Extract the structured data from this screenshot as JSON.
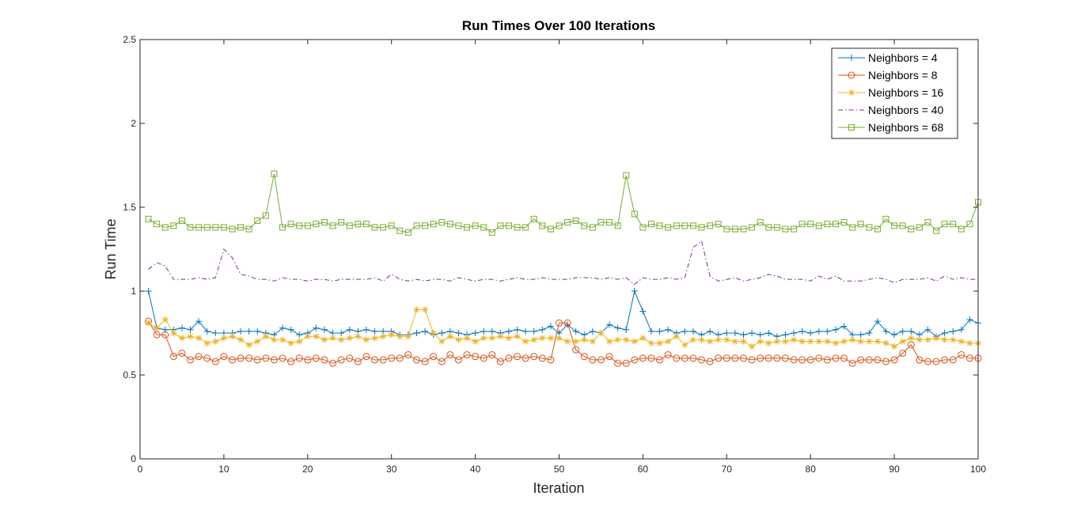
{
  "chart_data": {
    "type": "line",
    "title": "Run Times Over 100 Iterations",
    "xlabel": "Iteration",
    "ylabel": "Run Time",
    "xlim": [
      0,
      100
    ],
    "ylim": [
      0,
      2.5
    ],
    "xticks": [
      0,
      10,
      20,
      30,
      40,
      50,
      60,
      70,
      80,
      90,
      100
    ],
    "yticks": [
      0,
      0.5,
      1,
      1.5,
      2,
      2.5
    ],
    "ytick_labels": [
      "0",
      "0.5",
      "1",
      "1.5",
      "2",
      "2.5"
    ],
    "grid": false,
    "legend_position": "top-right",
    "series": [
      {
        "name": "Neighbors = 4",
        "color": "#0072BD",
        "marker": "plus",
        "line_style": "solid",
        "values": [
          1.0,
          0.78,
          0.77,
          0.77,
          0.78,
          0.77,
          0.82,
          0.76,
          0.75,
          0.75,
          0.75,
          0.76,
          0.76,
          0.76,
          0.75,
          0.74,
          0.78,
          0.77,
          0.74,
          0.75,
          0.78,
          0.77,
          0.75,
          0.75,
          0.77,
          0.76,
          0.77,
          0.76,
          0.76,
          0.76,
          0.74,
          0.74,
          0.75,
          0.76,
          0.74,
          0.75,
          0.76,
          0.75,
          0.74,
          0.75,
          0.76,
          0.76,
          0.75,
          0.76,
          0.77,
          0.76,
          0.76,
          0.77,
          0.79,
          0.75,
          0.8,
          0.76,
          0.74,
          0.76,
          0.75,
          0.8,
          0.78,
          0.77,
          1.0,
          0.88,
          0.76,
          0.76,
          0.77,
          0.75,
          0.76,
          0.76,
          0.74,
          0.76,
          0.74,
          0.75,
          0.75,
          0.74,
          0.75,
          0.74,
          0.75,
          0.73,
          0.74,
          0.75,
          0.76,
          0.75,
          0.76,
          0.76,
          0.77,
          0.79,
          0.74,
          0.74,
          0.75,
          0.82,
          0.76,
          0.74,
          0.76,
          0.76,
          0.74,
          0.77,
          0.73,
          0.75,
          0.76,
          0.77,
          0.83,
          0.81
        ]
      },
      {
        "name": "Neighbors = 8",
        "color": "#D95319",
        "marker": "circle",
        "line_style": "solid",
        "values": [
          0.82,
          0.74,
          0.74,
          0.61,
          0.63,
          0.59,
          0.61,
          0.6,
          0.58,
          0.61,
          0.59,
          0.6,
          0.6,
          0.59,
          0.6,
          0.59,
          0.6,
          0.58,
          0.6,
          0.59,
          0.6,
          0.59,
          0.57,
          0.59,
          0.6,
          0.58,
          0.61,
          0.59,
          0.59,
          0.6,
          0.6,
          0.62,
          0.59,
          0.58,
          0.61,
          0.58,
          0.62,
          0.59,
          0.62,
          0.61,
          0.6,
          0.62,
          0.58,
          0.6,
          0.61,
          0.6,
          0.61,
          0.6,
          0.59,
          0.81,
          0.81,
          0.65,
          0.61,
          0.59,
          0.59,
          0.61,
          0.57,
          0.57,
          0.59,
          0.6,
          0.6,
          0.59,
          0.62,
          0.6,
          0.6,
          0.6,
          0.59,
          0.58,
          0.6,
          0.6,
          0.6,
          0.6,
          0.59,
          0.6,
          0.6,
          0.6,
          0.6,
          0.59,
          0.59,
          0.59,
          0.6,
          0.59,
          0.6,
          0.6,
          0.57,
          0.59,
          0.59,
          0.59,
          0.58,
          0.59,
          0.63,
          0.68,
          0.59,
          0.58,
          0.58,
          0.59,
          0.59,
          0.62,
          0.6,
          0.6
        ]
      },
      {
        "name": "Neighbors = 16",
        "color": "#EDB120",
        "marker": "asterisk",
        "line_style": "solid",
        "values": [
          0.81,
          0.78,
          0.83,
          0.75,
          0.72,
          0.73,
          0.72,
          0.69,
          0.7,
          0.72,
          0.73,
          0.71,
          0.68,
          0.7,
          0.73,
          0.71,
          0.71,
          0.69,
          0.7,
          0.73,
          0.73,
          0.71,
          0.72,
          0.71,
          0.72,
          0.73,
          0.71,
          0.72,
          0.73,
          0.74,
          0.73,
          0.73,
          0.89,
          0.89,
          0.75,
          0.7,
          0.73,
          0.71,
          0.72,
          0.7,
          0.72,
          0.72,
          0.73,
          0.72,
          0.73,
          0.7,
          0.71,
          0.72,
          0.72,
          0.72,
          0.7,
          0.7,
          0.71,
          0.7,
          0.75,
          0.7,
          0.71,
          0.71,
          0.7,
          0.72,
          0.69,
          0.69,
          0.7,
          0.73,
          0.68,
          0.71,
          0.71,
          0.7,
          0.71,
          0.71,
          0.7,
          0.7,
          0.67,
          0.7,
          0.69,
          0.7,
          0.7,
          0.71,
          0.7,
          0.7,
          0.7,
          0.7,
          0.69,
          0.7,
          0.71,
          0.7,
          0.7,
          0.7,
          0.69,
          0.67,
          0.7,
          0.72,
          0.71,
          0.71,
          0.72,
          0.71,
          0.71,
          0.7,
          0.69,
          0.69
        ]
      },
      {
        "name": "Neighbors = 40",
        "color": "#7E2F8E",
        "marker": "none",
        "line_style": "dash-dot",
        "values": [
          1.13,
          1.17,
          1.15,
          1.07,
          1.07,
          1.07,
          1.08,
          1.07,
          1.08,
          1.25,
          1.2,
          1.1,
          1.09,
          1.07,
          1.07,
          1.06,
          1.08,
          1.07,
          1.07,
          1.06,
          1.07,
          1.07,
          1.06,
          1.07,
          1.07,
          1.07,
          1.07,
          1.08,
          1.06,
          1.1,
          1.07,
          1.06,
          1.07,
          1.06,
          1.07,
          1.07,
          1.06,
          1.08,
          1.07,
          1.06,
          1.07,
          1.07,
          1.06,
          1.07,
          1.08,
          1.07,
          1.07,
          1.08,
          1.07,
          1.07,
          1.07,
          1.08,
          1.08,
          1.08,
          1.07,
          1.08,
          1.07,
          1.08,
          1.04,
          1.08,
          1.07,
          1.07,
          1.08,
          1.07,
          1.08,
          1.26,
          1.3,
          1.09,
          1.06,
          1.07,
          1.08,
          1.06,
          1.07,
          1.08,
          1.1,
          1.09,
          1.07,
          1.07,
          1.07,
          1.06,
          1.09,
          1.07,
          1.09,
          1.06,
          1.06,
          1.06,
          1.07,
          1.08,
          1.07,
          1.05,
          1.07,
          1.07,
          1.07,
          1.08,
          1.06,
          1.09,
          1.07,
          1.08,
          1.07,
          1.07
        ]
      },
      {
        "name": "Neighbors = 68",
        "color": "#77AC30",
        "marker": "square",
        "line_style": "solid",
        "values": [
          1.43,
          1.4,
          1.38,
          1.39,
          1.42,
          1.38,
          1.38,
          1.38,
          1.38,
          1.38,
          1.37,
          1.38,
          1.37,
          1.42,
          1.45,
          1.7,
          1.38,
          1.4,
          1.39,
          1.39,
          1.4,
          1.41,
          1.39,
          1.41,
          1.39,
          1.4,
          1.4,
          1.38,
          1.38,
          1.39,
          1.36,
          1.35,
          1.39,
          1.39,
          1.4,
          1.41,
          1.4,
          1.39,
          1.38,
          1.39,
          1.38,
          1.35,
          1.39,
          1.39,
          1.38,
          1.38,
          1.43,
          1.39,
          1.37,
          1.39,
          1.41,
          1.42,
          1.39,
          1.38,
          1.41,
          1.41,
          1.39,
          1.69,
          1.46,
          1.38,
          1.4,
          1.39,
          1.38,
          1.39,
          1.39,
          1.39,
          1.38,
          1.39,
          1.4,
          1.37,
          1.37,
          1.37,
          1.38,
          1.41,
          1.38,
          1.38,
          1.37,
          1.37,
          1.4,
          1.4,
          1.39,
          1.4,
          1.4,
          1.41,
          1.38,
          1.4,
          1.38,
          1.37,
          1.43,
          1.39,
          1.39,
          1.37,
          1.38,
          1.41,
          1.36,
          1.4,
          1.4,
          1.37,
          1.4,
          1.53
        ]
      }
    ]
  }
}
